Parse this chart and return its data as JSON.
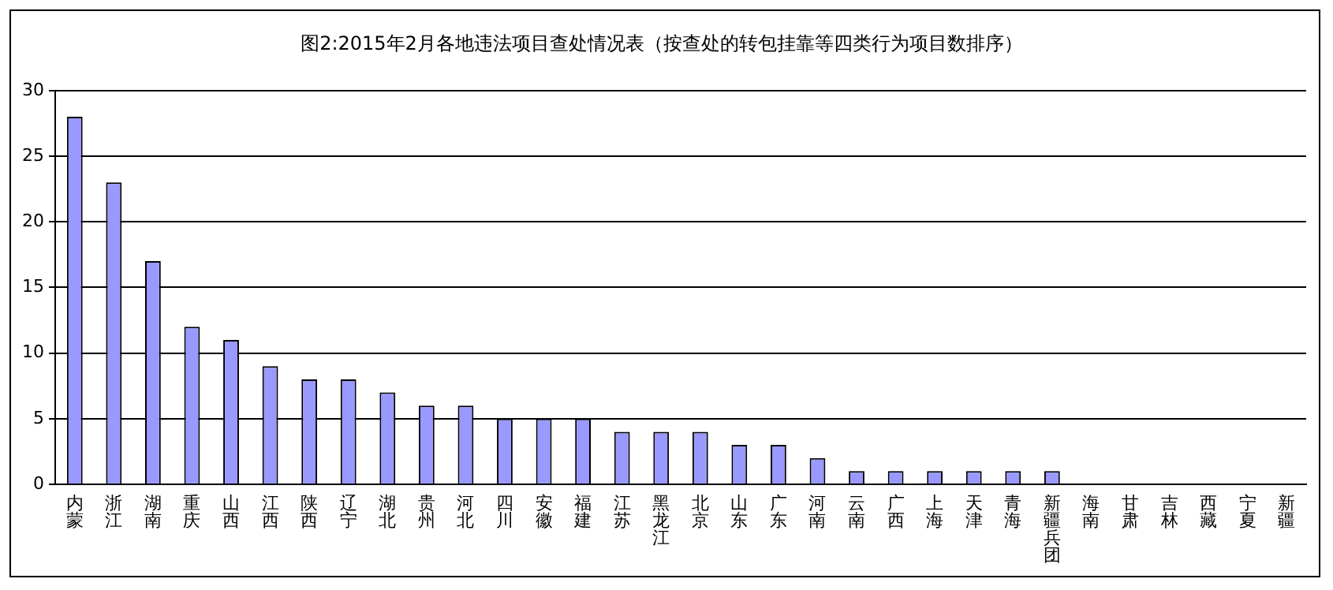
{
  "chart_data": {
    "type": "bar",
    "title": "图2:2015年2月各地违法项目查处情况表（按查处的转包挂靠等四类行为项目数排序）",
    "categories": [
      "内蒙",
      "浙江",
      "湖南",
      "重庆",
      "山西",
      "江西",
      "陕西",
      "辽宁",
      "湖北",
      "贵州",
      "河北",
      "四川",
      "安徽",
      "福建",
      "江苏",
      "黑龙江",
      "北京",
      "山东",
      "广东",
      "河南",
      "云南",
      "广西",
      "上海",
      "天津",
      "青海",
      "新疆兵团",
      "海南",
      "甘肃",
      "吉林",
      "西藏",
      "宁夏",
      "新疆"
    ],
    "values": [
      28,
      23,
      17,
      12,
      11,
      9,
      8,
      8,
      7,
      6,
      6,
      5,
      5,
      5,
      4,
      4,
      4,
      3,
      3,
      2,
      1,
      1,
      1,
      1,
      1,
      1,
      0,
      0,
      0,
      0,
      0,
      0
    ],
    "color": "#9999ff",
    "ylim": [
      0,
      30
    ],
    "yticks": [
      0,
      5,
      10,
      15,
      20,
      25,
      30
    ],
    "grid": "y"
  }
}
